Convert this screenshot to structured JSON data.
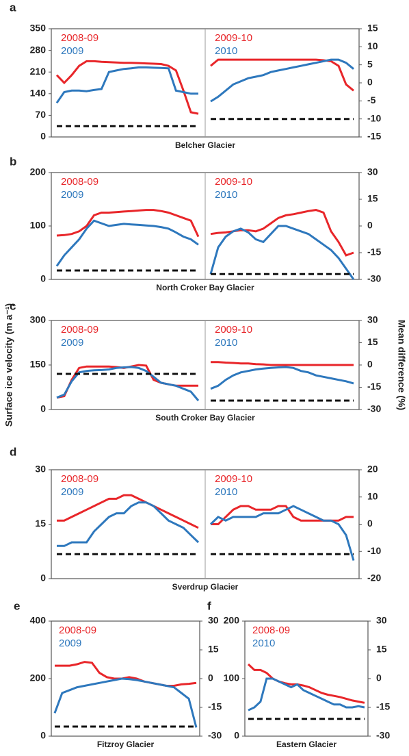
{
  "chart_data": [
    {
      "type": "line",
      "label": "a",
      "xlabel": "Belcher Glacier",
      "ylim": [
        0,
        350
      ],
      "yticks": [
        0,
        70,
        140,
        210,
        280,
        350
      ],
      "y2lim": [
        -15,
        15
      ],
      "y2ticks": [
        -15,
        -10,
        -5,
        0,
        5,
        10,
        15
      ],
      "subplots": [
        {
          "series": [
            {
              "name": "2008-09",
              "color": "#e8262a",
              "values": [
                200,
                175,
                200,
                230,
                245,
                245,
                243,
                242,
                241,
                240,
                240,
                239,
                238,
                237,
                236,
                230,
                215,
                150,
                80,
                75
              ]
            },
            {
              "name": "2009",
              "color": "#2e78bd",
              "values": [
                110,
                145,
                150,
                150,
                148,
                152,
                155,
                210,
                215,
                220,
                222,
                225,
                225,
                224,
                223,
                222,
                150,
                145,
                140,
                140
              ]
            },
            {
              "color": "#111111",
              "axis": "y2",
              "dash": true,
              "values": [
                -12,
                -12
              ]
            }
          ]
        },
        {
          "series": [
            {
              "name": "2009-10",
              "color": "#e8262a",
              "values": [
                230,
                250,
                250,
                250,
                250,
                250,
                250,
                250,
                250,
                250,
                250,
                250,
                250,
                250,
                250,
                248,
                245,
                230,
                170,
                150
              ]
            },
            {
              "name": "2010",
              "color": "#2e78bd",
              "values": [
                115,
                130,
                150,
                170,
                180,
                190,
                195,
                200,
                210,
                215,
                220,
                225,
                230,
                235,
                240,
                245,
                250,
                250,
                240,
                220
              ]
            },
            {
              "color": "#111111",
              "axis": "y2",
              "dash": true,
              "values": [
                -10,
                -10
              ]
            }
          ]
        }
      ]
    },
    {
      "type": "line",
      "label": "b",
      "xlabel": "North Croker Bay Glacier",
      "ylim": [
        0,
        200
      ],
      "yticks": [
        0,
        100,
        200
      ],
      "y2lim": [
        -30,
        30
      ],
      "y2ticks": [
        -30,
        -15,
        0,
        15,
        30
      ],
      "subplots": [
        {
          "series": [
            {
              "name": "2008-09",
              "color": "#e8262a",
              "values": [
                82,
                83,
                85,
                90,
                100,
                120,
                125,
                125,
                126,
                127,
                128,
                129,
                130,
                130,
                128,
                125,
                120,
                115,
                110,
                80
              ]
            },
            {
              "name": "2009",
              "color": "#2e78bd",
              "values": [
                25,
                45,
                60,
                75,
                95,
                110,
                105,
                100,
                102,
                104,
                103,
                102,
                101,
                100,
                98,
                95,
                88,
                80,
                75,
                65
              ]
            },
            {
              "color": "#111111",
              "axis": "y2",
              "dash": true,
              "values": [
                -25,
                -25
              ]
            }
          ]
        },
        {
          "series": [
            {
              "name": "2009-10",
              "color": "#e8262a",
              "values": [
                85,
                87,
                88,
                90,
                92,
                92,
                90,
                95,
                105,
                115,
                120,
                122,
                125,
                128,
                130,
                125,
                90,
                70,
                45,
                50
              ]
            },
            {
              "name": "2010",
              "color": "#2e78bd",
              "values": [
                10,
                60,
                80,
                90,
                95,
                88,
                75,
                70,
                85,
                100,
                100,
                95,
                90,
                85,
                75,
                65,
                55,
                40,
                20,
                0
              ]
            },
            {
              "color": "#111111",
              "axis": "y2",
              "dash": true,
              "values": [
                -27,
                -27
              ]
            }
          ]
        }
      ]
    },
    {
      "type": "line",
      "label": "c",
      "xlabel": "South Croker Bay Glacier",
      "ylabel": "Surface ice velocity (m a⁻¹)",
      "y2label": "Mean difference (%)",
      "ylim": [
        0,
        300
      ],
      "yticks": [
        0,
        150,
        300
      ],
      "y2lim": [
        -30,
        30
      ],
      "y2ticks": [
        -30,
        -15,
        0,
        15,
        30
      ],
      "subplots": [
        {
          "series": [
            {
              "name": "2008-09",
              "color": "#e8262a",
              "values": [
                40,
                45,
                100,
                140,
                145,
                145,
                145,
                145,
                143,
                140,
                145,
                150,
                148,
                100,
                90,
                85,
                80,
                80,
                80,
                80
              ]
            },
            {
              "name": "2009",
              "color": "#2e78bd",
              "values": [
                40,
                50,
                95,
                125,
                130,
                132,
                133,
                135,
                140,
                142,
                143,
                140,
                130,
                110,
                90,
                85,
                80,
                70,
                60,
                30
              ]
            },
            {
              "color": "#111111",
              "axis": "y2",
              "dash": true,
              "values": [
                -6,
                -6
              ]
            }
          ]
        },
        {
          "series": [
            {
              "name": "2009-10",
              "color": "#e8262a",
              "values": [
                160,
                160,
                158,
                157,
                155,
                155,
                153,
                152,
                150,
                150,
                150,
                150,
                150,
                150,
                150,
                150,
                150,
                150,
                150,
                150
              ]
            },
            {
              "name": "2010",
              "color": "#2e78bd",
              "values": [
                70,
                80,
                100,
                115,
                125,
                130,
                135,
                138,
                140,
                142,
                143,
                140,
                130,
                125,
                115,
                110,
                105,
                100,
                95,
                88
              ]
            },
            {
              "color": "#111111",
              "axis": "y2",
              "dash": true,
              "values": [
                -24,
                -24
              ]
            }
          ]
        }
      ]
    },
    {
      "type": "line",
      "label": "d",
      "xlabel": "Sverdrup Glacier",
      "ylim": [
        0,
        30
      ],
      "yticks": [
        0,
        15,
        30
      ],
      "y2lim": [
        -20,
        20
      ],
      "y2ticks": [
        -20,
        -10,
        0,
        10,
        20
      ],
      "subplots": [
        {
          "series": [
            {
              "name": "2008-09",
              "color": "#e8262a",
              "values": [
                16,
                16,
                17,
                18,
                19,
                20,
                21,
                22,
                22,
                23,
                23,
                22,
                21,
                20,
                19,
                18,
                17,
                16,
                15,
                14
              ]
            },
            {
              "name": "2009",
              "color": "#2e78bd",
              "values": [
                9,
                9,
                10,
                10,
                10,
                13,
                15,
                17,
                18,
                18,
                20,
                21,
                21,
                20,
                18,
                16,
                15,
                14,
                12,
                10
              ]
            },
            {
              "color": "#111111",
              "axis": "y2",
              "dash": true,
              "values": [
                -11,
                -11
              ]
            }
          ]
        },
        {
          "series": [
            {
              "name": "2009-10",
              "color": "#e8262a",
              "values": [
                15,
                15,
                17,
                19,
                20,
                20,
                19,
                19,
                19,
                20,
                20,
                17,
                16,
                16,
                16,
                16,
                16,
                16,
                17,
                17
              ]
            },
            {
              "name": "2010",
              "color": "#2e78bd",
              "values": [
                15,
                17,
                16,
                17,
                17,
                17,
                17,
                18,
                18,
                18,
                19,
                20,
                19,
                18,
                17,
                16,
                16,
                15,
                12,
                5
              ]
            },
            {
              "color": "#111111",
              "axis": "y2",
              "dash": true,
              "values": [
                -11,
                -11
              ]
            }
          ]
        }
      ]
    },
    {
      "type": "line",
      "label": "e",
      "xlabel": "Fitzroy Glacier",
      "ylim": [
        0,
        400
      ],
      "yticks": [
        0,
        200,
        400
      ],
      "y2lim": [
        -30,
        30
      ],
      "y2ticks": [
        -30,
        -15,
        0,
        15,
        30
      ],
      "subplots": [
        {
          "series": [
            {
              "name": "2008-09",
              "color": "#e8262a",
              "values": [
                245,
                245,
                245,
                250,
                258,
                255,
                220,
                205,
                200,
                200,
                205,
                200,
                190,
                185,
                180,
                175,
                175,
                180,
                182,
                185
              ]
            },
            {
              "name": "2009",
              "color": "#2e78bd",
              "values": [
                80,
                150,
                160,
                170,
                175,
                180,
                185,
                190,
                195,
                200,
                198,
                195,
                190,
                185,
                180,
                175,
                170,
                150,
                130,
                30
              ]
            },
            {
              "color": "#111111",
              "axis": "y2",
              "dash": true,
              "values": [
                -25,
                -25
              ]
            }
          ]
        }
      ]
    },
    {
      "type": "line",
      "label": "f",
      "xlabel": "Eastern Glacier",
      "ylim": [
        0,
        200
      ],
      "yticks": [
        0,
        100,
        200
      ],
      "y2lim": [
        -30,
        30
      ],
      "y2ticks": [
        -30,
        -15,
        0,
        15,
        30
      ],
      "subplots": [
        {
          "series": [
            {
              "name": "2008-09",
              "color": "#e8262a",
              "values": [
                125,
                115,
                115,
                110,
                100,
                95,
                92,
                90,
                90,
                88,
                85,
                80,
                75,
                72,
                70,
                68,
                65,
                62,
                60,
                58
              ]
            },
            {
              "name": "2010",
              "color": "#2e78bd",
              "values": [
                45,
                50,
                60,
                100,
                100,
                95,
                90,
                85,
                90,
                80,
                75,
                70,
                65,
                60,
                55,
                55,
                50,
                50,
                52,
                50
              ]
            },
            {
              "color": "#111111",
              "axis": "y2",
              "dash": true,
              "values": [
                -21,
                -21
              ]
            }
          ]
        }
      ]
    }
  ]
}
